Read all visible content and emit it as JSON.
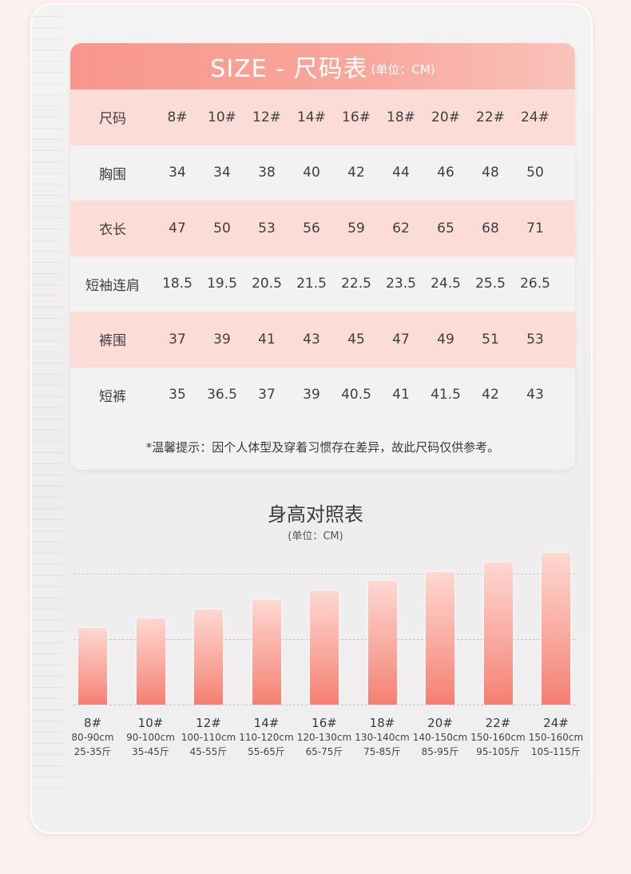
{
  "size_table": {
    "title": "SIZE - 尺码表",
    "unit": "(单位：CM)",
    "rows": [
      {
        "label": "尺码",
        "values": [
          "8#",
          "10#",
          "12#",
          "14#",
          "16#",
          "18#",
          "20#",
          "22#",
          "24#"
        ]
      },
      {
        "label": "胸围",
        "values": [
          "34",
          "34",
          "38",
          "40",
          "42",
          "44",
          "46",
          "48",
          "50"
        ]
      },
      {
        "label": "衣长",
        "values": [
          "47",
          "50",
          "53",
          "56",
          "59",
          "62",
          "65",
          "68",
          "71"
        ]
      },
      {
        "label": "短袖连肩",
        "values": [
          "18.5",
          "19.5",
          "20.5",
          "21.5",
          "22.5",
          "23.5",
          "24.5",
          "25.5",
          "26.5"
        ]
      },
      {
        "label": "裤围",
        "values": [
          "37",
          "39",
          "41",
          "43",
          "45",
          "47",
          "49",
          "51",
          "53"
        ]
      },
      {
        "label": "短裤",
        "values": [
          "35",
          "36.5",
          "37",
          "39",
          "40.5",
          "41",
          "41.5",
          "42",
          "43"
        ]
      }
    ],
    "note": "*温馨提示：因个人体型及穿着习惯存在差异，故此尺码仅供参考。"
  },
  "height_chart": {
    "title": "身高对照表",
    "unit": "(单位：CM)"
  },
  "chart_data": {
    "type": "bar",
    "title": "身高对照表",
    "categories": [
      "8#",
      "10#",
      "12#",
      "14#",
      "16#",
      "18#",
      "20#",
      "22#",
      "24#"
    ],
    "heights": [
      "80-90cm",
      "90-100cm",
      "100-110cm",
      "110-120cm",
      "120-130cm",
      "130-140cm",
      "140-150cm",
      "150-160cm",
      "150-160cm"
    ],
    "weights": [
      "25-35斤",
      "35-45斤",
      "45-55斤",
      "55-65斤",
      "65-75斤",
      "75-85斤",
      "85-95斤",
      "95-105斤",
      "105-115斤"
    ],
    "values": [
      1,
      2,
      3,
      4,
      5,
      6,
      7,
      8,
      9
    ],
    "ylim": [
      0,
      9
    ],
    "grid": true,
    "colors": {
      "bar_top": "#fdd8d2",
      "bar_bottom": "#f47f72",
      "header": "#f8968c",
      "row_alt": "#fcdcd7"
    }
  }
}
